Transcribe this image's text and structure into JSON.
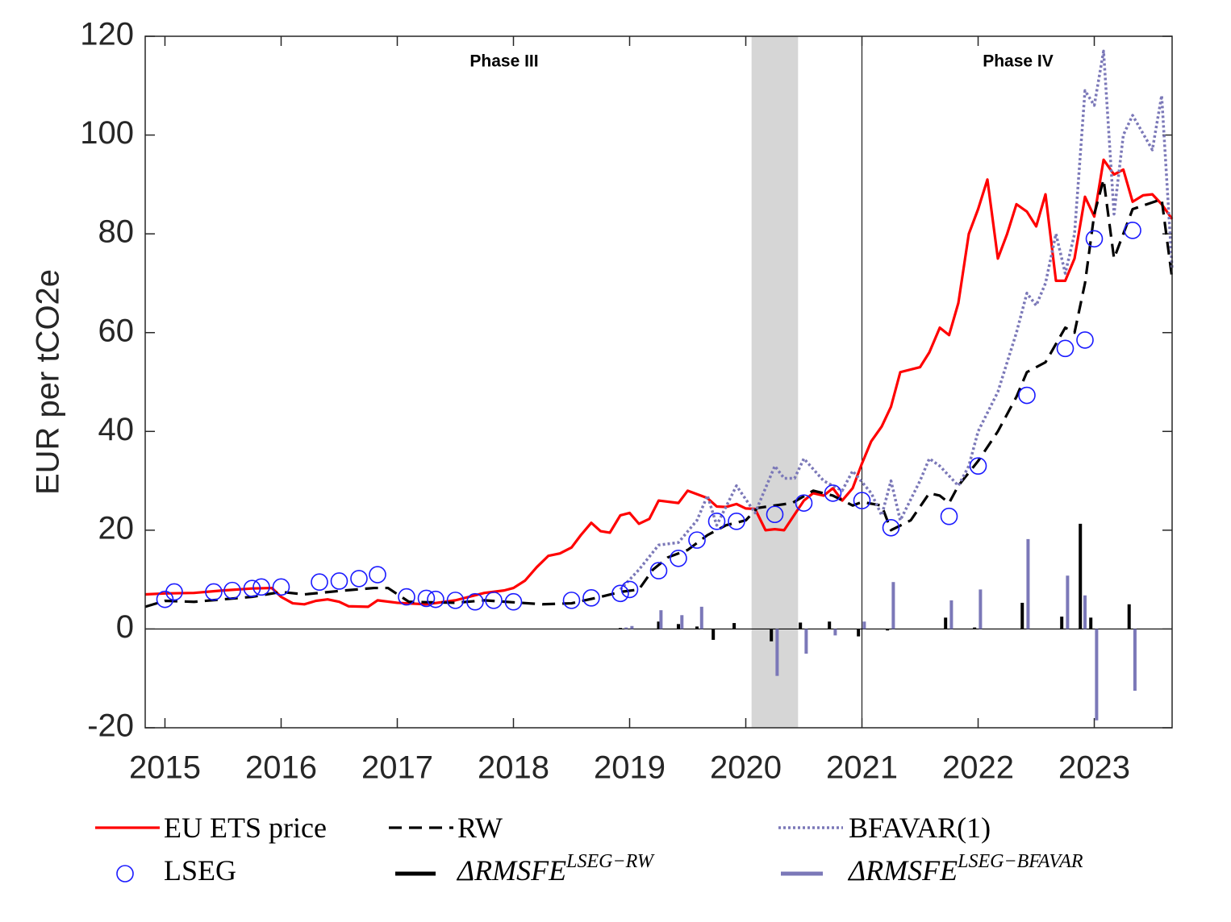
{
  "chart_data": {
    "type": "line",
    "ylabel": "EUR per tCO2e",
    "xlim": [
      2014.83,
      2023.67
    ],
    "ylim": [
      -20,
      120
    ],
    "xticks": [
      2015,
      2016,
      2017,
      2018,
      2019,
      2020,
      2021,
      2022,
      2023
    ],
    "yticks": [
      -20,
      0,
      20,
      40,
      60,
      80,
      100,
      120
    ],
    "shade": [
      2020.05,
      2020.45
    ],
    "vline": 2021,
    "annotations": [
      "Phase III",
      "Phase IV"
    ],
    "series": [
      {
        "name": "EU ETS price",
        "type": "line",
        "style": "solid",
        "color": "#ff0000",
        "x": [
          2014.83,
          2015.0,
          2015.25,
          2015.5,
          2015.75,
          2015.92,
          2016.0,
          2016.1,
          2016.2,
          2016.3,
          2016.4,
          2016.5,
          2016.58,
          2016.75,
          2016.83,
          2017.0,
          2017.25,
          2017.5,
          2017.75,
          2017.92,
          2018.0,
          2018.1,
          2018.2,
          2018.3,
          2018.4,
          2018.5,
          2018.58,
          2018.67,
          2018.75,
          2018.83,
          2018.92,
          2019.0,
          2019.08,
          2019.17,
          2019.25,
          2019.42,
          2019.5,
          2019.67,
          2019.75,
          2019.83,
          2019.92,
          2020.0,
          2020.08,
          2020.17,
          2020.25,
          2020.33,
          2020.5,
          2020.58,
          2020.67,
          2020.75,
          2020.83,
          2020.92,
          2021.0,
          2021.08,
          2021.17,
          2021.25,
          2021.33,
          2021.5,
          2021.58,
          2021.67,
          2021.75,
          2021.83,
          2021.92,
          2022.0,
          2022.08,
          2022.17,
          2022.25,
          2022.33,
          2022.42,
          2022.5,
          2022.58,
          2022.67,
          2022.75,
          2022.83,
          2022.92,
          2023.0,
          2023.08,
          2023.17,
          2023.25,
          2023.33,
          2023.42,
          2023.5,
          2023.58,
          2023.67
        ],
        "values": [
          7,
          7.2,
          7.3,
          7.8,
          8.2,
          8.3,
          6.5,
          5.2,
          5.0,
          5.7,
          6.0,
          5.5,
          4.6,
          4.5,
          5.8,
          5.3,
          5.0,
          5.8,
          7.3,
          7.8,
          8.3,
          9.8,
          12.5,
          14.8,
          15.3,
          16.5,
          19,
          21.5,
          19.8,
          19.5,
          23,
          23.5,
          21.3,
          22.3,
          26,
          25.5,
          28,
          26.5,
          24.8,
          24.7,
          25.3,
          24.4,
          24.3,
          20,
          20.2,
          20,
          26,
          27.5,
          27,
          28.5,
          26,
          28.5,
          33.5,
          38,
          41,
          45,
          52,
          53,
          56,
          61,
          59.5,
          66,
          80,
          85,
          91,
          75,
          80,
          86,
          84.5,
          81.5,
          88,
          70.5,
          70.5,
          75,
          87.5,
          83.5,
          95,
          92,
          93,
          86.5,
          87.8,
          88,
          86,
          83
        ]
      },
      {
        "name": "RW",
        "type": "line",
        "style": "dashed",
        "color": "#000000",
        "x": [
          2014.83,
          2015.0,
          2015.25,
          2015.5,
          2015.75,
          2016.0,
          2016.2,
          2016.5,
          2016.8,
          2016.92,
          2017.1,
          2017.3,
          2017.5,
          2017.75,
          2018.0,
          2018.25,
          2018.5,
          2018.75,
          2018.92,
          2019.08,
          2019.2,
          2019.33,
          2019.5,
          2019.67,
          2019.83,
          2020.0,
          2020.1,
          2020.25,
          2020.4,
          2020.58,
          2020.75,
          2020.92,
          2021.0,
          2021.17,
          2021.25,
          2021.42,
          2021.58,
          2021.67,
          2021.75,
          2021.83,
          2022.0,
          2022.17,
          2022.33,
          2022.42,
          2022.58,
          2022.75,
          2022.83,
          2022.92,
          2023.0,
          2023.08,
          2023.17,
          2023.33,
          2023.58,
          2023.67
        ],
        "values": [
          4.5,
          5.7,
          5.5,
          6,
          6.5,
          7.5,
          7,
          7.7,
          8.3,
          8.3,
          5.5,
          5.4,
          5.3,
          5.8,
          5.4,
          5,
          5.2,
          6.5,
          7.5,
          8,
          12,
          14.5,
          16,
          19,
          21,
          22,
          24.5,
          25,
          25.5,
          28,
          27,
          25,
          25.7,
          25,
          20,
          22,
          27.5,
          27,
          25.5,
          29,
          34,
          40,
          47,
          52,
          54,
          61,
          60,
          70,
          84,
          91,
          75,
          85,
          87,
          71
        ]
      },
      {
        "name": "BFAVAR(1)",
        "type": "line",
        "style": "dotted",
        "color": "#7b78b8",
        "x": [
          2018.92,
          2019.08,
          2019.25,
          2019.42,
          2019.58,
          2019.67,
          2019.75,
          2019.92,
          2020.08,
          2020.25,
          2020.33,
          2020.42,
          2020.5,
          2020.67,
          2020.83,
          2020.92,
          2021.08,
          2021.17,
          2021.25,
          2021.33,
          2021.5,
          2021.58,
          2021.67,
          2021.83,
          2021.92,
          2022.0,
          2022.17,
          2022.33,
          2022.42,
          2022.5,
          2022.58,
          2022.67,
          2022.75,
          2022.83,
          2022.92,
          2023.0,
          2023.08,
          2023.17,
          2023.25,
          2023.33,
          2023.5,
          2023.58,
          2023.67
        ],
        "values": [
          8,
          12,
          17,
          17.5,
          22,
          27,
          21,
          29,
          23.5,
          33,
          30.5,
          30.5,
          34.5,
          30,
          28,
          32,
          27.5,
          23,
          30,
          22,
          30,
          34.5,
          33,
          29,
          33,
          40,
          48,
          60,
          68,
          65.5,
          70,
          80,
          72,
          80,
          109,
          106,
          117,
          84,
          100,
          104,
          97,
          108,
          73
        ]
      },
      {
        "name": "LSEG",
        "type": "scatter",
        "color": "#1a1aff",
        "x": [
          2015.0,
          2015.08,
          2015.42,
          2015.58,
          2015.75,
          2015.83,
          2016.0,
          2016.33,
          2016.5,
          2016.67,
          2016.83,
          2017.08,
          2017.25,
          2017.33,
          2017.5,
          2017.67,
          2017.83,
          2018.0,
          2018.5,
          2018.67,
          2018.92,
          2019.0,
          2019.25,
          2019.42,
          2019.58,
          2019.75,
          2019.92,
          2020.25,
          2020.5,
          2020.75,
          2021.0,
          2021.25,
          2021.75,
          2022.0,
          2022.42,
          2022.75,
          2022.92,
          2023.0,
          2023.33
        ],
        "values": [
          6,
          7.5,
          7.5,
          7.8,
          8.2,
          8.5,
          8.5,
          9.5,
          9.7,
          10.2,
          11,
          6.5,
          6.2,
          6,
          5.8,
          5.5,
          5.8,
          5.5,
          5.8,
          6.3,
          7.2,
          8,
          11.8,
          14.3,
          18,
          21.8,
          21.8,
          23.2,
          25.5,
          27.5,
          26,
          20.5,
          22.8,
          33,
          47.3,
          56.8,
          58.5,
          79,
          80.7
        ]
      },
      {
        "name": "ΔRMSFE",
        "name_superscript": "LSEG−RW",
        "type": "bar",
        "color": "#000000",
        "x": [
          2018.92,
          2019.25,
          2019.42,
          2019.58,
          2019.72,
          2019.9,
          2020.22,
          2020.47,
          2020.72,
          2020.97,
          2021.22,
          2021.72,
          2021.97,
          2022.38,
          2022.72,
          2022.88,
          2022.97,
          2023.3
        ],
        "values": [
          0.2,
          1.5,
          1,
          0.5,
          -2.2,
          1.2,
          -2.5,
          1.3,
          1.5,
          -1.5,
          -0.3,
          2.3,
          0.3,
          5.3,
          2.5,
          21.3,
          2.3,
          5
        ]
      },
      {
        "name": "ΔRMSFE",
        "name_superscript": "LSEG−BFAVAR",
        "type": "bar",
        "color": "#7b78b8",
        "x": [
          2018.97,
          2019.02,
          2019.27,
          2019.45,
          2019.62,
          2020.27,
          2020.52,
          2020.77,
          2021.02,
          2021.27,
          2021.77,
          2022.02,
          2022.43,
          2022.77,
          2022.92,
          2023.02,
          2023.35
        ],
        "values": [
          0.3,
          0.6,
          3.8,
          2.8,
          4.5,
          -9.5,
          -5,
          -1.3,
          1.5,
          9.5,
          5.8,
          8,
          18.2,
          10.8,
          6.8,
          -18.5,
          -12.5
        ]
      }
    ]
  }
}
